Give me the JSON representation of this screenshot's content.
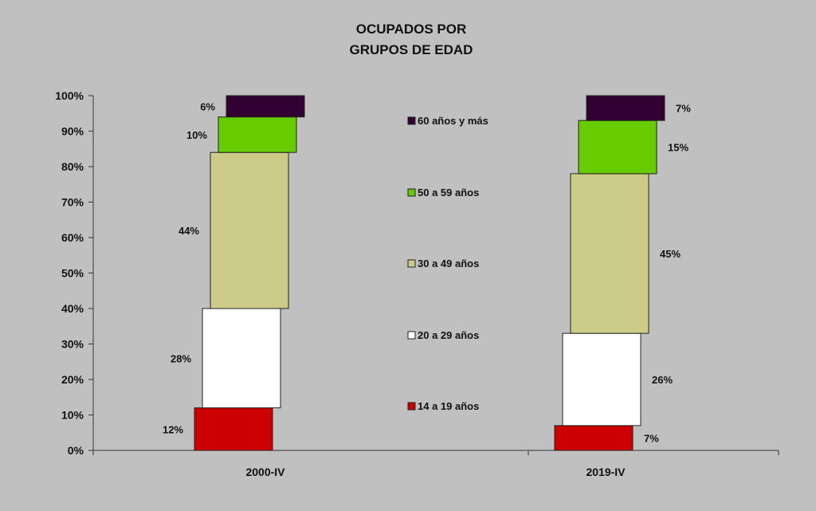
{
  "chart_data": {
    "type": "bar",
    "stacked": true,
    "normalized": true,
    "title": "OCUPADOS POR GRUPOS DE EDAD",
    "title_lines": [
      "OCUPADOS POR",
      "GRUPOS DE EDAD"
    ],
    "xlabel": "",
    "ylabel": "",
    "ylim": [
      0,
      100
    ],
    "y_ticks": [
      0,
      10,
      20,
      30,
      40,
      50,
      60,
      70,
      80,
      90,
      100
    ],
    "y_tick_labels": [
      "0%",
      "10%",
      "20%",
      "30%",
      "40%",
      "50%",
      "60%",
      "70%",
      "80%",
      "90%",
      "100%"
    ],
    "categories": [
      "2000-IV",
      "2019-IV"
    ],
    "grid": false,
    "legend_position": "center",
    "series": [
      {
        "name": "14 a 19 años",
        "color": "#cc0000",
        "values": [
          12,
          7
        ],
        "labels": [
          "12%",
          "7%"
        ]
      },
      {
        "name": "20 a 29 años",
        "color": "#ffffff",
        "values": [
          28,
          26
        ],
        "labels": [
          "28%",
          "26%"
        ]
      },
      {
        "name": "30 a 49 años",
        "color": "#cccc88",
        "values": [
          44,
          45
        ],
        "labels": [
          "44%",
          "45%"
        ]
      },
      {
        "name": "50 a 59 años",
        "color": "#66cc00",
        "values": [
          10,
          15
        ],
        "labels": [
          "10%",
          "15%"
        ]
      },
      {
        "name": "60 años y más",
        "color": "#330033",
        "values": [
          6,
          7
        ],
        "labels": [
          "6%",
          "7%"
        ]
      }
    ]
  }
}
